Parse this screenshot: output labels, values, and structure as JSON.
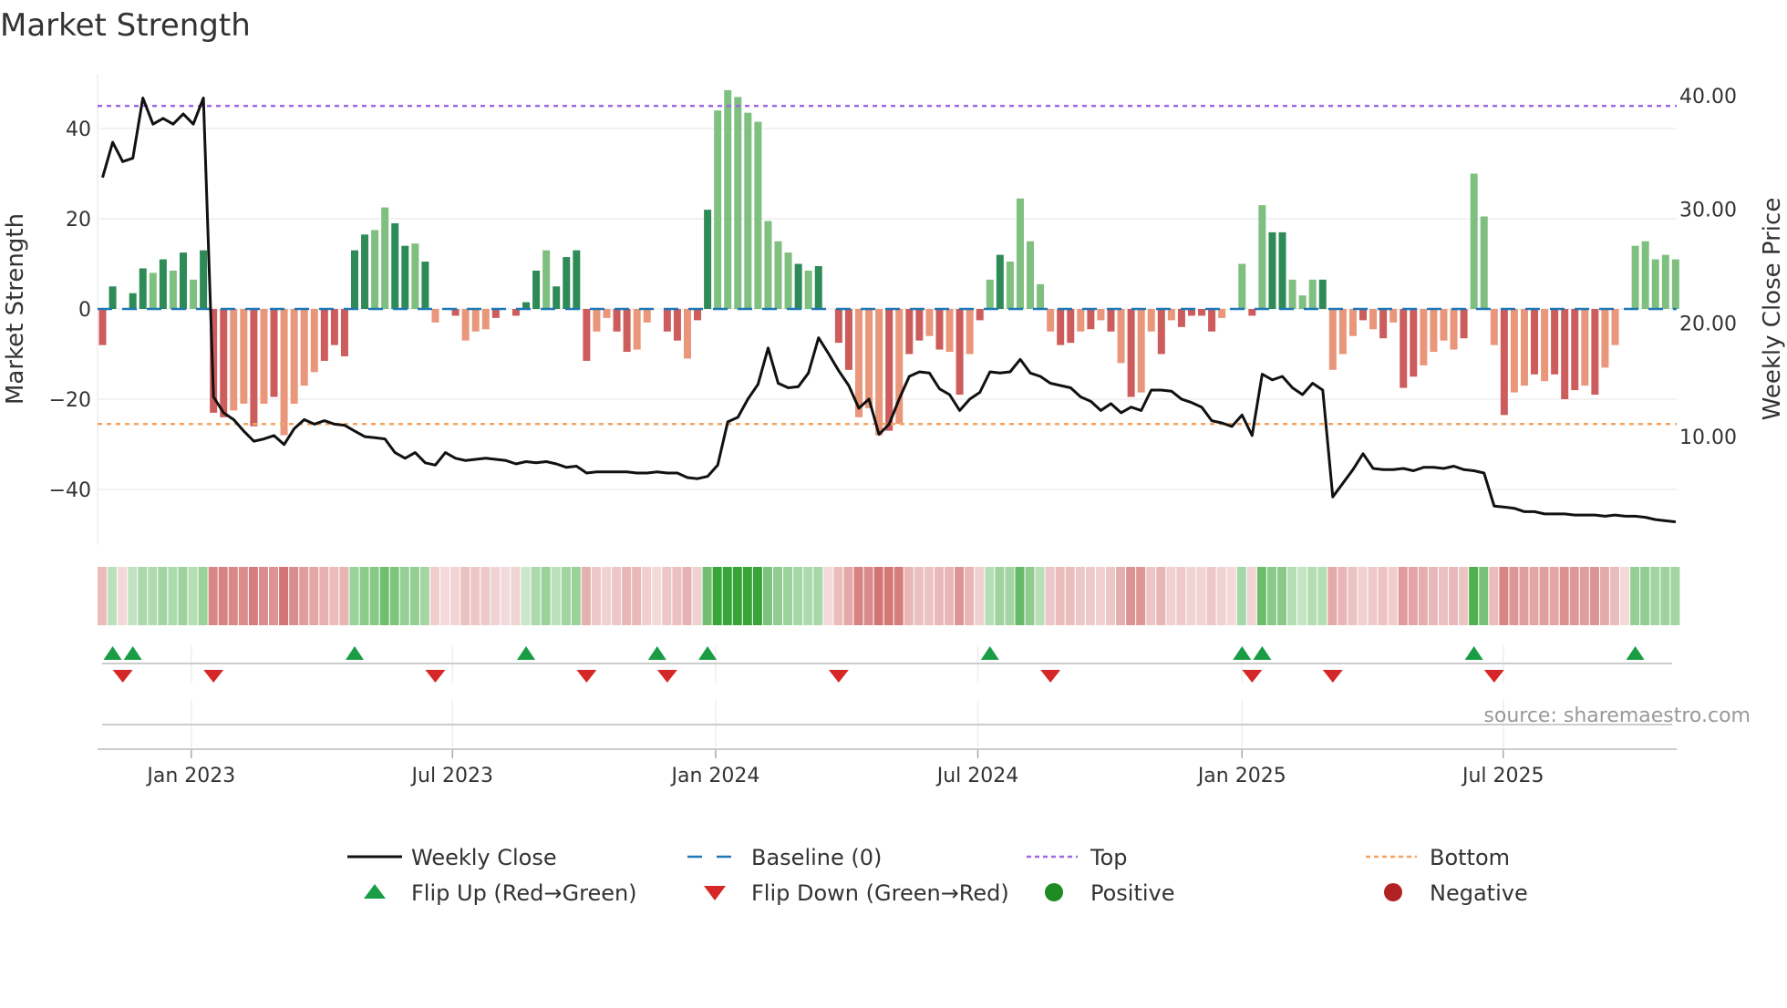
{
  "chart_data": {
    "type": "bar",
    "title": "Market Strength",
    "ylabel": "Market Strength",
    "y2label": "Weekly Close Price",
    "ylim": [
      -52,
      56
    ],
    "y2lim": [
      1.5,
      43
    ],
    "yticks": [
      40,
      20,
      0,
      -20,
      -40
    ],
    "ytick_labels": [
      "40",
      "20",
      "0",
      "−20",
      "−40"
    ],
    "y2ticks": [
      40,
      30,
      20,
      10
    ],
    "y2tick_labels": [
      "40.00",
      "30.00",
      "20.00",
      "10.00"
    ],
    "x_unit": "week index",
    "xticks": [
      {
        "label": "Jan 2023",
        "week": 8.8
      },
      {
        "label": "Jul 2023",
        "week": 34.7
      },
      {
        "label": "Jan 2024",
        "week": 60.8
      },
      {
        "label": "Jul 2024",
        "week": 86.8
      },
      {
        "label": "Jan 2025",
        "week": 113
      },
      {
        "label": "Jul 2025",
        "week": 138.9
      }
    ],
    "top_level": 45,
    "bottom_level": -25.5,
    "baseline": 0,
    "strength": [
      -8,
      5,
      0,
      3.5,
      9,
      8,
      11,
      8.5,
      12.5,
      6.5,
      13,
      -23,
      -24,
      -22.5,
      -21,
      -26,
      -21,
      -19.5,
      -28,
      -21,
      -17,
      -14,
      -11.5,
      -8,
      -10.5,
      13,
      16.5,
      17.5,
      22.5,
      19,
      14,
      14.5,
      10.5,
      -3,
      0,
      -1.5,
      -7,
      -5,
      -4.5,
      -2,
      0,
      -1.5,
      1.5,
      8.5,
      13,
      5,
      11.5,
      13,
      -11.5,
      -5,
      -2,
      -5,
      -9.5,
      -9,
      -3,
      0,
      -5,
      -7,
      -11,
      -2.5,
      22,
      44,
      48.5,
      47,
      43.5,
      41.5,
      19.5,
      15,
      12.5,
      10,
      8.5,
      9.5,
      0,
      -7.5,
      -13.5,
      -24,
      -22,
      -28,
      -27,
      -25.5,
      -10,
      -7,
      -6,
      -9,
      -9.5,
      -19,
      -10,
      -2.5,
      6.5,
      12,
      10.5,
      24.5,
      15,
      5.5,
      -5,
      -8,
      -7.5,
      -5,
      -4.5,
      -2.5,
      -5,
      -12,
      -19.5,
      -18.5,
      -5,
      -10,
      -2.5,
      -4,
      -1.5,
      -1.5,
      -5,
      -2,
      0,
      10,
      -1.5,
      23,
      17,
      17,
      6.5,
      3,
      6.5,
      6.5,
      -13.5,
      -10,
      -6,
      -2.5,
      -4.5,
      -6.5,
      -3,
      -17.5,
      -15,
      -12.5,
      -9.5,
      -7,
      -9,
      -6.5,
      30,
      20.5,
      -8,
      -23.5,
      -18.5,
      -17,
      -14.5,
      -16,
      -14.5,
      -20,
      -18,
      -17,
      -19,
      -13,
      -8,
      0,
      14,
      15,
      11,
      12,
      11
    ],
    "strength_intensity": "ddxddldldldddlldldlllldddddllddldxddllxdddddlddddllddlxdddlddlllllllldxddddllldlddldldldldlllllddldldldlldxddddllldlddllldllldldlddlllldllldlldxdddld",
    "close": [
      32.8,
      35.9,
      34.2,
      34.5,
      39.8,
      37.5,
      38,
      37.5,
      38.4,
      37.5,
      39.8,
      13.5,
      12.1,
      11.5,
      10.5,
      9.6,
      9.8,
      10.1,
      9.3,
      10.7,
      11.5,
      11.1,
      11.4,
      11.1,
      11,
      10.5,
      10,
      9.9,
      9.8,
      8.6,
      8.1,
      8.6,
      7.7,
      7.5,
      8.6,
      8.1,
      7.9,
      8,
      8.1,
      8,
      7.9,
      7.6,
      7.8,
      7.7,
      7.8,
      7.6,
      7.3,
      7.4,
      6.8,
      6.9,
      6.9,
      6.9,
      6.9,
      6.8,
      6.8,
      6.9,
      6.8,
      6.8,
      6.4,
      6.3,
      6.5,
      7.5,
      11.3,
      11.7,
      13.3,
      14.6,
      17.8,
      14.7,
      14.3,
      14.4,
      15.6,
      18.7,
      17.3,
      15.8,
      14.5,
      12.5,
      13.3,
      10.2,
      11.1,
      13.3,
      15.3,
      15.7,
      15.6,
      14.2,
      13.7,
      12.3,
      13.3,
      13.9,
      15.7,
      15.6,
      15.7,
      16.8,
      15.6,
      15.3,
      14.7,
      14.5,
      14.3,
      13.5,
      13.1,
      12.3,
      12.9,
      12.1,
      12.6,
      12.3,
      14.1,
      14.1,
      14,
      13.3,
      13,
      12.6,
      11.4,
      11.2,
      10.9,
      11.9,
      10.1,
      15.5,
      15,
      15.3,
      14.3,
      13.7,
      14.7,
      14.1,
      4.7,
      5.9,
      7.1,
      8.5,
      7.2,
      7.1,
      7.1,
      7.2,
      7,
      7.3,
      7.3,
      7.2,
      7.4,
      7.1,
      7,
      6.8,
      3.9,
      3.8,
      3.7,
      3.4,
      3.4,
      3.2,
      3.2,
      3.2,
      3.1,
      3.1,
      3.1,
      3,
      3.1,
      3,
      3,
      2.9,
      2.7,
      2.6,
      2.5
    ],
    "flip_up_weeks": [
      1,
      3,
      25,
      42,
      55,
      60,
      88,
      113,
      115,
      136,
      152
    ],
    "flip_down_weeks": [
      2,
      11,
      33,
      48,
      56,
      73,
      94,
      114,
      122,
      138
    ],
    "legend": {
      "placement": "bottom",
      "entries": [
        {
          "label": "Weekly Close",
          "kind": "line",
          "color": "#111111"
        },
        {
          "label": "Baseline (0)",
          "kind": "dash",
          "color": "#1f77b4"
        },
        {
          "label": "Top",
          "kind": "dot",
          "color": "#a066e6"
        },
        {
          "label": "Bottom",
          "kind": "dot",
          "color": "#f4a460"
        },
        {
          "label": "Flip Up (Red→Green)",
          "kind": "up",
          "color": "#1a9c45"
        },
        {
          "label": "Flip Down (Green→Red)",
          "kind": "down",
          "color": "#d62728"
        },
        {
          "label": "Positive",
          "kind": "circle",
          "color": "#1f8b24"
        },
        {
          "label": "Negative",
          "kind": "circle",
          "color": "#b22222"
        }
      ]
    },
    "colors": {
      "pos_strong": "#2e8b57",
      "pos_weak": "#7fbf7f",
      "neg_strong": "#cd5c5c",
      "neg_weak": "#e9967a",
      "strip_pos": "44,160,44",
      "strip_neg": "200,80,80"
    },
    "source": "source: sharemaestro.com"
  }
}
